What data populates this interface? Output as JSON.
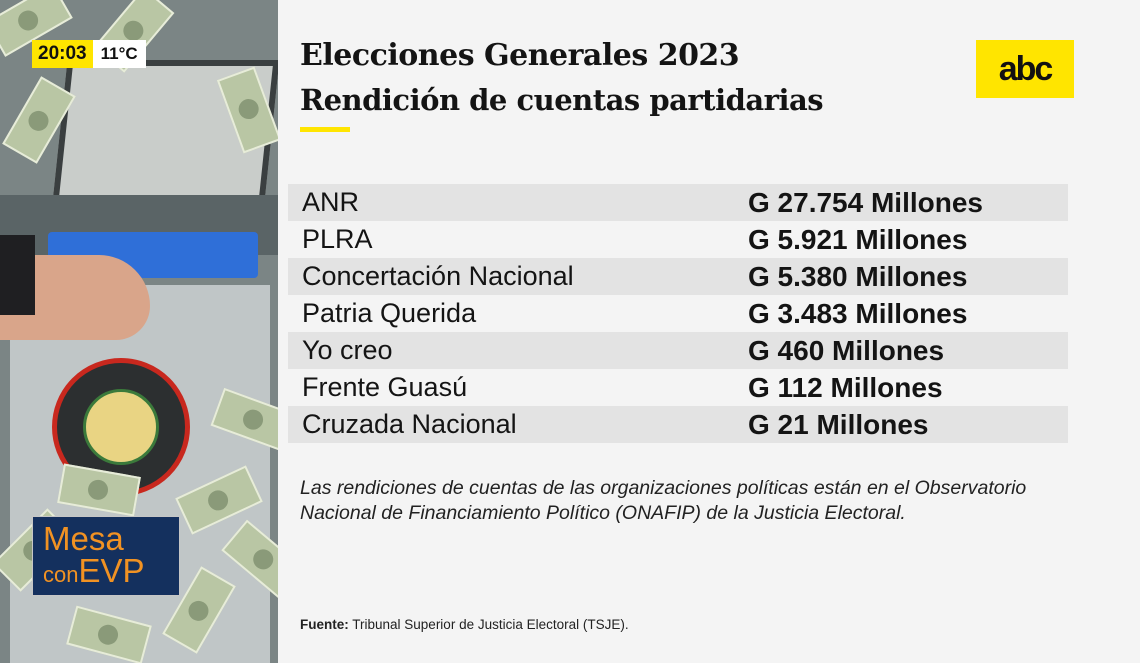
{
  "overlay": {
    "time": "20:03",
    "temperature": "11°C"
  },
  "show_logo": {
    "line1": "Mesa",
    "line2_prefix": "con",
    "line2_suffix": "EVP"
  },
  "brand_logo": "abc",
  "header": {
    "title": "Elecciones Generales 2023",
    "subtitle": "Rendición de cuentas partidarias"
  },
  "table": {
    "rows": [
      {
        "party": "ANR",
        "amount": "G 27.754 Millones"
      },
      {
        "party": "PLRA",
        "amount": "G 5.921 Millones"
      },
      {
        "party": "Concertación Nacional",
        "amount": "G 5.380 Millones"
      },
      {
        "party": "Patria Querida",
        "amount": "G 3.483 Millones"
      },
      {
        "party": "Yo creo",
        "amount": "G 460 Millones"
      },
      {
        "party": "Frente Guasú",
        "amount": "G 112 Millones"
      },
      {
        "party": "Cruzada Nacional",
        "amount": "G 21 Millones"
      }
    ]
  },
  "note": "Las rendiciones de cuentas de las organizaciones políticas están en el Observatorio Nacional de Financiamiento Político (ONAFIP) de la Justicia Electoral.",
  "source": {
    "label": "Fuente:",
    "text": "Tribunal Superior de Justicia Electoral (TSJE)."
  },
  "colors": {
    "accent_yellow": "#ffe500",
    "show_logo_bg": "#14305e",
    "show_logo_text": "#f19223",
    "row_shade": "#e3e3e3"
  }
}
